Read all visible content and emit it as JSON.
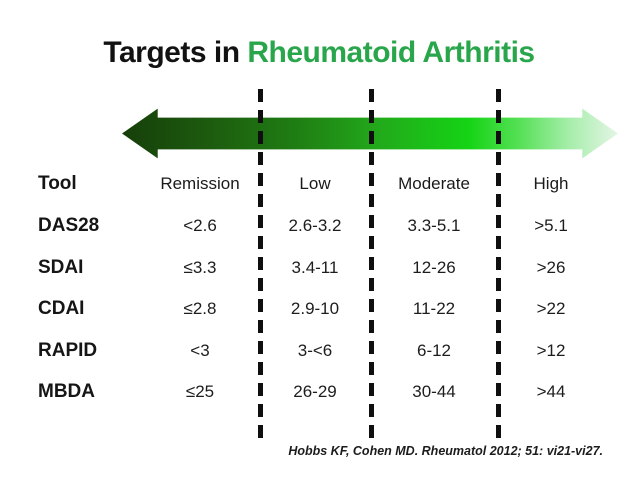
{
  "title": {
    "prefix": "Targets in ",
    "highlight": "Rheumatoid Arthritis",
    "highlight_color": "#29a64b"
  },
  "arrow": {
    "meaning": "disease-activity severity gradient, dark green (remission) to pale green (high)",
    "gradient_stops": [
      "#163f0a 0%",
      "#1d5c0f 18%",
      "#1f7d13 35%",
      "#22aa1b 52%",
      "#15d415 70%",
      "#55e055 80%",
      "#a5eda9 90%",
      "#e4f5e6 100%"
    ]
  },
  "table": {
    "columns": [
      "Tool",
      "Remission",
      "Low",
      "Moderate",
      "High"
    ],
    "rows": [
      {
        "tool": "DAS28",
        "values": [
          "<2.6",
          "2.6-3.2",
          "3.3-5.1",
          ">5.1"
        ]
      },
      {
        "tool": "SDAI",
        "values": [
          "≤3.3",
          "3.4-11",
          "12-26",
          ">26"
        ]
      },
      {
        "tool": "CDAI",
        "values": [
          "≤2.8",
          "2.9-10",
          "11-22",
          ">22"
        ]
      },
      {
        "tool": "RAPID",
        "values": [
          "<3",
          "3-<6",
          "6-12",
          ">12"
        ]
      },
      {
        "tool": "MBDA",
        "values": [
          "≤25",
          "26-29",
          "30-44",
          ">44"
        ]
      }
    ]
  },
  "citation": "Hobbs KF, Cohen MD. Rheumatol 2012; 51: vi21-vi27."
}
